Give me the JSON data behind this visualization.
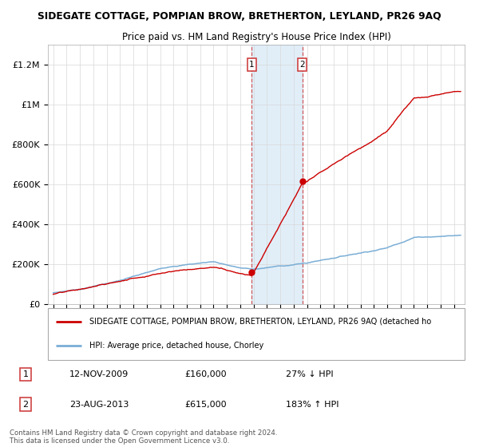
{
  "title": "SIDEGATE COTTAGE, POMPIAN BROW, BRETHERTON, LEYLAND, PR26 9AQ",
  "subtitle": "Price paid vs. HM Land Registry's House Price Index (HPI)",
  "ylim": [
    0,
    1300000
  ],
  "yticks": [
    0,
    200000,
    400000,
    600000,
    800000,
    1000000,
    1200000
  ],
  "ytick_labels": [
    "£0",
    "£200K",
    "£400K",
    "£600K",
    "£800K",
    "£1M",
    "£1.2M"
  ],
  "xlim_left": 1994.6,
  "xlim_right": 2025.8,
  "sale1_date": 2009.87,
  "sale1_price": 160000,
  "sale1_label": "1",
  "sale2_date": 2013.64,
  "sale2_price": 615000,
  "sale2_label": "2",
  "red_line_color": "#cc0000",
  "blue_line_color": "#7aaed6",
  "shaded_region_color": "#daeaf7",
  "annotation_box1": {
    "date": "12-NOV-2009",
    "price": "£160,000",
    "pct": "27% ↓ HPI"
  },
  "annotation_box2": {
    "date": "23-AUG-2013",
    "price": "£615,000",
    "pct": "183% ↑ HPI"
  },
  "legend_red": "SIDEGATE COTTAGE, POMPIAN BROW, BRETHERTON, LEYLAND, PR26 9AQ (detached ho",
  "legend_blue": "HPI: Average price, detached house, Chorley",
  "footer": "Contains HM Land Registry data © Crown copyright and database right 2024.\nThis data is licensed under the Open Government Licence v3.0."
}
